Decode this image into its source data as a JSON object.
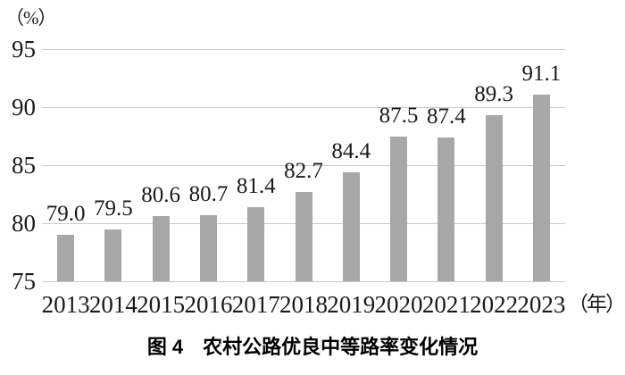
{
  "caption": "图 4　农村公路优良中等路率变化情况",
  "chart_data": {
    "type": "bar",
    "title": "图 4　农村公路优良中等路率变化情况",
    "unit_label": "（%）",
    "x_axis_suffix": "（年）",
    "categories": [
      "2013",
      "2014",
      "2015",
      "2016",
      "2017",
      "2018",
      "2019",
      "2020",
      "2021",
      "2022",
      "2023"
    ],
    "values": [
      79.0,
      79.5,
      80.6,
      80.7,
      81.4,
      82.7,
      84.4,
      87.5,
      87.4,
      89.3,
      91.1
    ],
    "value_labels": [
      "79.0",
      "79.5",
      "80.6",
      "80.7",
      "81.4",
      "82.7",
      "84.4",
      "87.5",
      "87.4",
      "89.3",
      "91.1"
    ],
    "ylim": [
      75,
      95
    ],
    "yticks": [
      75,
      80,
      85,
      90,
      95
    ],
    "grid": true,
    "legend": "none",
    "bar_color": "#a7a7a7",
    "gridline_color": "#c9c9c9",
    "text_color": "#1a1a1a"
  }
}
